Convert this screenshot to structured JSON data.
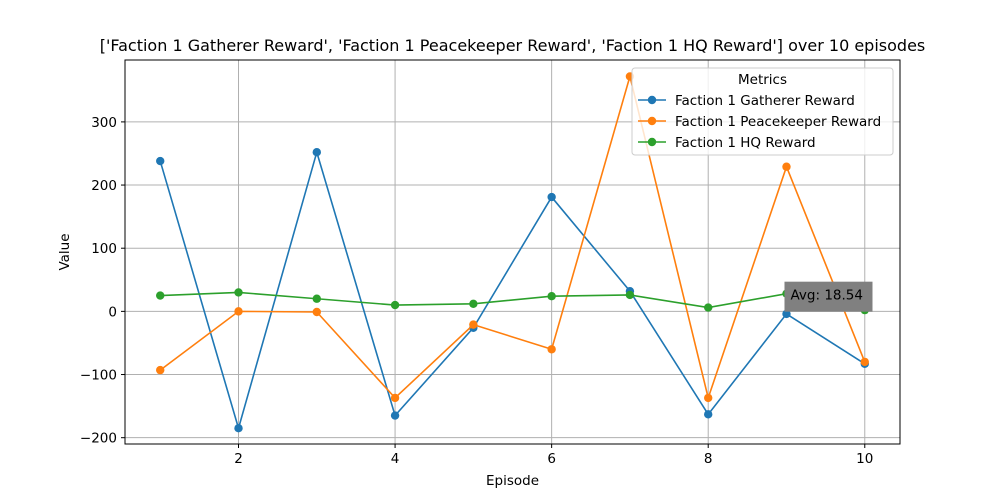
{
  "chart_data": {
    "type": "line",
    "title": "['Faction 1 Gatherer Reward', 'Faction 1 Peacekeeper Reward', 'Faction 1 HQ Reward'] over 10 episodes",
    "xlabel": "Episode",
    "ylabel": "Value",
    "x": [
      1,
      2,
      3,
      4,
      5,
      6,
      7,
      8,
      9,
      10
    ],
    "xlim": [
      0.55,
      10.45
    ],
    "ylim": [
      -210,
      398
    ],
    "xticks": [
      2,
      4,
      6,
      8,
      10
    ],
    "yticks": [
      -200,
      -100,
      0,
      100,
      200,
      300
    ],
    "grid": true,
    "legend": {
      "title": "Metrics",
      "placement": "top-right"
    },
    "series": [
      {
        "name": "Faction 1 Gatherer Reward",
        "color": "#1f77b4",
        "values": [
          238,
          -185,
          252,
          -165,
          -26,
          181,
          32,
          -163,
          -4,
          -83
        ]
      },
      {
        "name": "Faction 1 Peacekeeper Reward",
        "color": "#ff7f0e",
        "values": [
          -93,
          0,
          -1,
          -137,
          -21,
          -60,
          372,
          -137,
          229,
          -80
        ]
      },
      {
        "name": "Faction 1 HQ Reward",
        "color": "#2ca02c",
        "values": [
          25,
          30,
          20,
          10,
          12,
          24,
          26,
          6,
          28,
          2
        ]
      }
    ],
    "annotation": {
      "text": "Avg: 18.54",
      "x": 9,
      "y": 28
    }
  }
}
